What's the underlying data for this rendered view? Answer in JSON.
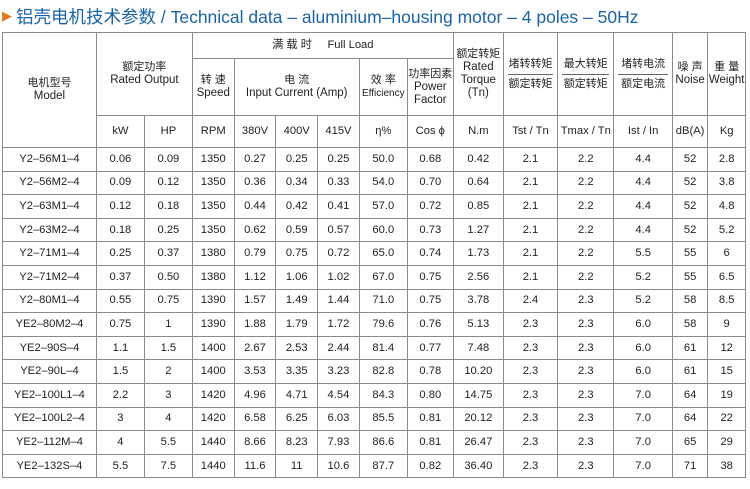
{
  "title": "铝壳电机技术参数 / Technical data – aluminium–housing motor – 4 poles – 50Hz",
  "header": {
    "model_zh": "电机型号",
    "model_en": "Model",
    "rated_output_zh": "额定功率",
    "rated_output_en": "Rated Output",
    "full_load_zh": "满 载 时",
    "full_load_en": "Full Load",
    "speed_zh": "转 速",
    "speed_en": "Speed",
    "current_zh": "电 流",
    "current_en": "Input Current (Amp)",
    "efficiency_zh": "效 率",
    "efficiency_en": "Efficiency",
    "pf_zh": "功率因素",
    "pf_en1": "Power",
    "pf_en2": "Factor",
    "torque_zh": "额定转矩",
    "torque_en1": "Rated",
    "torque_en2": "Torque",
    "torque_en3": "(Tn)",
    "locked_torque_zh1": "堵转转矩",
    "locked_torque_zh2": "额定转矩",
    "max_torque_zh1": "最大转矩",
    "max_torque_zh2": "额定转矩",
    "locked_current_zh1": "堵转电流",
    "locked_current_zh2": "额定电流",
    "noise_zh": "噪 声",
    "noise_en": "Noise",
    "weight_zh": "重 量",
    "weight_en": "Weight"
  },
  "units": [
    "kW",
    "HP",
    "RPM",
    "380V",
    "400V",
    "415V",
    "η%",
    "Cos ϕ",
    "N.m",
    "Tst / Tn",
    "Tmax / Tn",
    "Ist / In",
    "dB(A)",
    "Kg"
  ],
  "rows": [
    [
      "Y2–56M1–4",
      "0.06",
      "0.09",
      "1350",
      "0.27",
      "0.25",
      "0.25",
      "50.0",
      "0.68",
      "0.42",
      "2.1",
      "2.2",
      "4.4",
      "52",
      "2.8"
    ],
    [
      "Y2–56M2–4",
      "0.09",
      "0.12",
      "1350",
      "0.36",
      "0.34",
      "0.33",
      "54.0",
      "0.70",
      "0.64",
      "2.1",
      "2.2",
      "4.4",
      "52",
      "3.8"
    ],
    [
      "Y2–63M1–4",
      "0.12",
      "0.18",
      "1350",
      "0.44",
      "0.42",
      "0.41",
      "57.0",
      "0.72",
      "0.85",
      "2.1",
      "2.2",
      "4.4",
      "52",
      "4.8"
    ],
    [
      "Y2–63M2–4",
      "0.18",
      "0.25",
      "1350",
      "0.62",
      "0.59",
      "0.57",
      "60.0",
      "0.73",
      "1.27",
      "2.1",
      "2.2",
      "4.4",
      "52",
      "5.2"
    ],
    [
      "Y2–71M1–4",
      "0.25",
      "0.37",
      "1380",
      "0.79",
      "0.75",
      "0.72",
      "65.0",
      "0.74",
      "1.73",
      "2.1",
      "2.2",
      "5.5",
      "55",
      "6"
    ],
    [
      "Y2–71M2–4",
      "0.37",
      "0.50",
      "1380",
      "1.12",
      "1.06",
      "1.02",
      "67.0",
      "0.75",
      "2.56",
      "2.1",
      "2.2",
      "5.2",
      "55",
      "6.5"
    ],
    [
      "Y2–80M1–4",
      "0.55",
      "0.75",
      "1390",
      "1.57",
      "1.49",
      "1.44",
      "71.0",
      "0.75",
      "3.78",
      "2.4",
      "2.3",
      "5.2",
      "58",
      "8.5"
    ],
    [
      "YE2–80M2–4",
      "0.75",
      "1",
      "1390",
      "1.88",
      "1.79",
      "1.72",
      "79.6",
      "0.76",
      "5.13",
      "2.3",
      "2.3",
      "6.0",
      "58",
      "9"
    ],
    [
      "YE2–90S–4",
      "1.1",
      "1.5",
      "1400",
      "2.67",
      "2.53",
      "2.44",
      "81.4",
      "0.77",
      "7.48",
      "2.3",
      "2.3",
      "6.0",
      "61",
      "12"
    ],
    [
      "YE2–90L–4",
      "1.5",
      "2",
      "1400",
      "3.53",
      "3.35",
      "3.23",
      "82.8",
      "0.78",
      "10.20",
      "2.3",
      "2.3",
      "6.0",
      "61",
      "15"
    ],
    [
      "YE2–100L1–4",
      "2.2",
      "3",
      "1420",
      "4.96",
      "4.71",
      "4.54",
      "84.3",
      "0.80",
      "14.75",
      "2.3",
      "2.3",
      "7.0",
      "64",
      "19"
    ],
    [
      "YE2–100L2–4",
      "3",
      "4",
      "1420",
      "6.58",
      "6.25",
      "6.03",
      "85.5",
      "0.81",
      "20.12",
      "2.3",
      "2.3",
      "7.0",
      "64",
      "22"
    ],
    [
      "YE2–112M–4",
      "4",
      "5.5",
      "1440",
      "8.66",
      "8.23",
      "7.93",
      "86.6",
      "0.81",
      "26.47",
      "2.3",
      "2.3",
      "7.0",
      "65",
      "29"
    ],
    [
      "YE2–132S–4",
      "5.5",
      "7.5",
      "1440",
      "11.6",
      "11",
      "10.6",
      "87.7",
      "0.82",
      "36.40",
      "2.3",
      "2.3",
      "7.0",
      "71",
      "38"
    ]
  ]
}
